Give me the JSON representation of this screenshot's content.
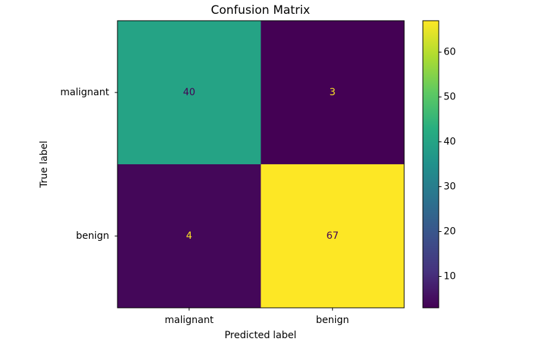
{
  "chart_data": {
    "type": "heatmap",
    "title": "Confusion Matrix",
    "x_label": "Predicted label",
    "y_label": "True label",
    "x_categories": [
      "malignant",
      "benign"
    ],
    "y_categories": [
      "malignant",
      "benign"
    ],
    "values": [
      [
        40,
        3
      ],
      [
        4,
        67
      ]
    ],
    "colormap": "viridis",
    "clim": [
      3,
      67
    ],
    "colorbar_ticks": [
      10,
      20,
      30,
      40,
      50,
      60
    ]
  }
}
